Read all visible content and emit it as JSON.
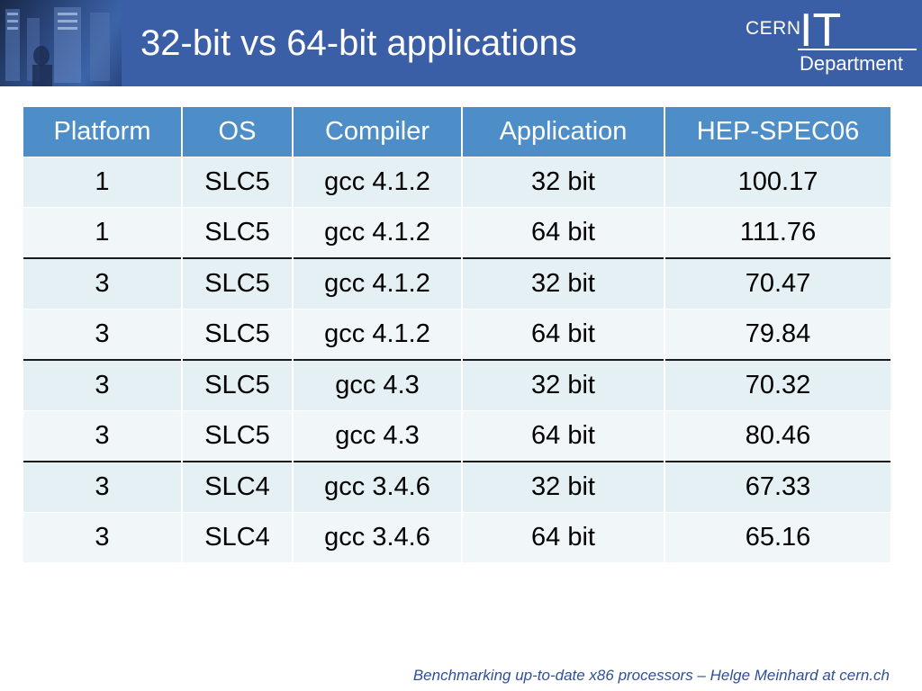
{
  "slide": {
    "title": "32-bit vs 64-bit applications",
    "footer": "Benchmarking up-to-date x86 processors – Helge Meinhard at cern.ch"
  },
  "logo": {
    "cern": "CERN",
    "it": "IT",
    "department": "Department"
  },
  "table": {
    "headers": [
      "Platform",
      "OS",
      "Compiler",
      "Application",
      "HEP-SPEC06"
    ],
    "rows": [
      [
        "1",
        "SLC5",
        "gcc 4.1.2",
        "32 bit",
        "100.17"
      ],
      [
        "1",
        "SLC5",
        "gcc 4.1.2",
        "64 bit",
        "111.76"
      ],
      [
        "3",
        "SLC5",
        "gcc 4.1.2",
        "32 bit",
        "70.47"
      ],
      [
        "3",
        "SLC5",
        "gcc 4.1.2",
        "64 bit",
        "79.84"
      ],
      [
        "3",
        "SLC5",
        "gcc 4.3",
        "32 bit",
        "70.32"
      ],
      [
        "3",
        "SLC5",
        "gcc 4.3",
        "64 bit",
        "80.46"
      ],
      [
        "3",
        "SLC4",
        "gcc 3.4.6",
        "32 bit",
        "67.33"
      ],
      [
        "3",
        "SLC4",
        "gcc 3.4.6",
        "64 bit",
        "65.16"
      ]
    ]
  },
  "colors": {
    "header_bar": "#3a5fa6",
    "table_header": "#4d8ec8",
    "row_odd": "#e4f0f4",
    "row_even": "#f1f7f9",
    "footer_text": "#2f4f9b"
  }
}
